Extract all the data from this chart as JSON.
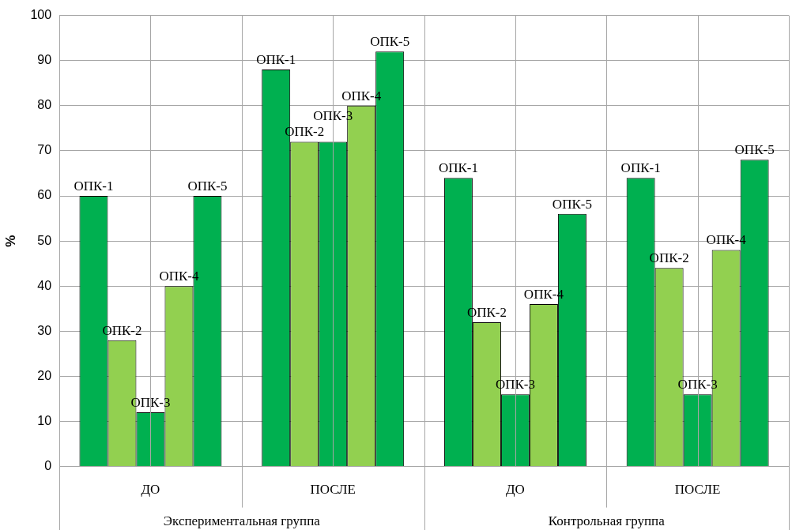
{
  "chart_data": {
    "type": "bar",
    "ylabel": "%",
    "categories": [
      "ДО",
      "ПОСЛЕ",
      "ДО",
      "ПОСЛЕ"
    ],
    "series": [
      {
        "name": "ОПК-1",
        "color": "#00b050",
        "values": [
          60,
          88,
          64,
          64
        ]
      },
      {
        "name": "ОПК-2",
        "color": "#92d050",
        "values": [
          28,
          72,
          32,
          44
        ]
      },
      {
        "name": "ОПК-3",
        "color": "#00b050",
        "values": [
          12,
          72,
          16,
          16
        ]
      },
      {
        "name": "ОПК-4",
        "color": "#92d050",
        "values": [
          40,
          80,
          36,
          48
        ]
      },
      {
        "name": "ОПК-5",
        "color": "#00b050",
        "values": [
          60,
          92,
          56,
          68
        ]
      }
    ],
    "annotations": [
      "Экспериментальная группа",
      "Контрольная группа"
    ],
    "ylim": [
      0,
      100
    ],
    "yticks": [
      0,
      10,
      20,
      30,
      40,
      50,
      60,
      70,
      80,
      90,
      100
    ],
    "grid": true,
    "legend": false
  }
}
